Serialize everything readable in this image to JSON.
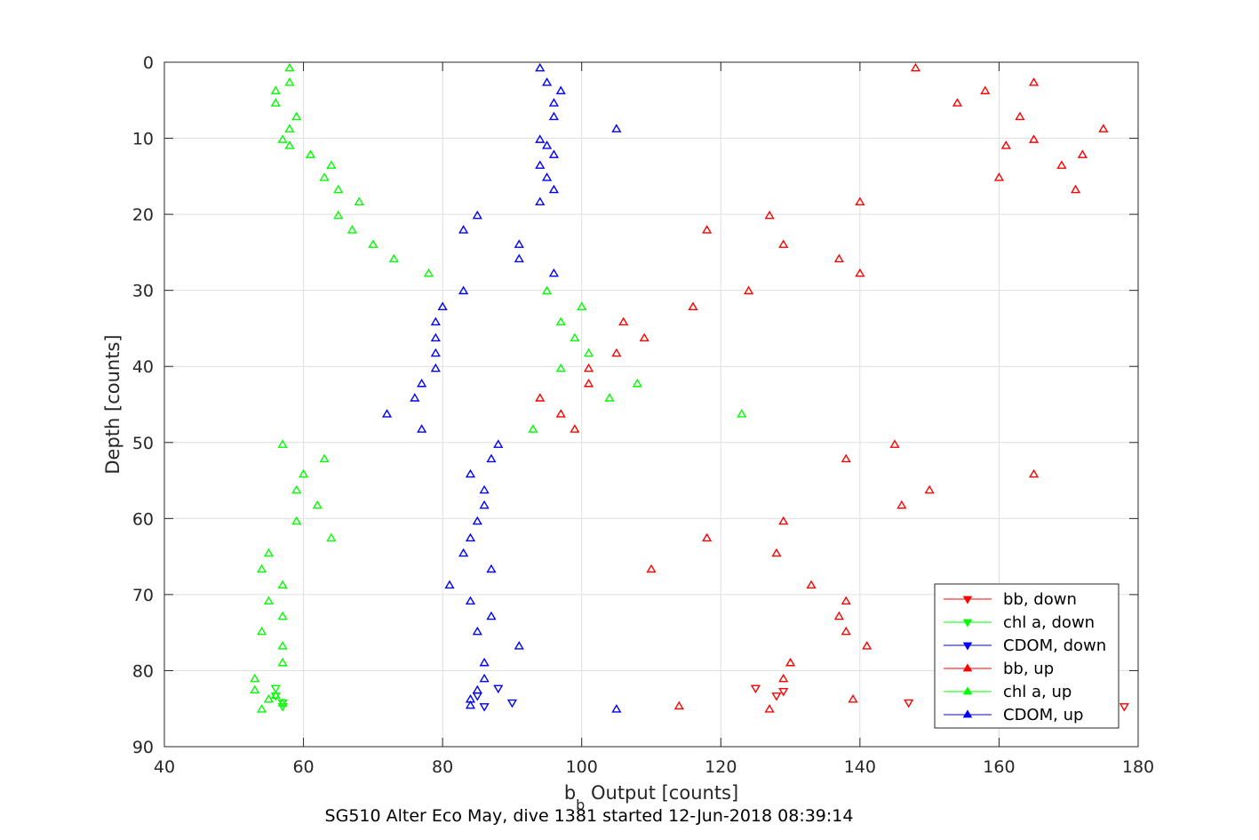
{
  "chart_data": {
    "type": "scatter",
    "caption": "SG510 Alter Eco May, dive 1381 started 12-Jun-2018 08:39:14",
    "xlabel_main": "b",
    "xlabel_sub": "b",
    "xlabel_rest": " Output [counts]",
    "ylabel": "Depth [counts]",
    "xlim": [
      40,
      180
    ],
    "ylim": [
      0,
      90
    ],
    "y_reversed": true,
    "grid": true,
    "legend_position": "bottom-right",
    "xticks": [
      40,
      60,
      80,
      100,
      120,
      140,
      160,
      180
    ],
    "yticks": [
      0,
      10,
      20,
      30,
      40,
      50,
      60,
      70,
      80,
      90
    ],
    "series": [
      {
        "name": "bb, down",
        "color": "#ff0000",
        "marker": "triangle-down",
        "points": [
          [
            125,
            82.3
          ],
          [
            128,
            83.3
          ],
          [
            129,
            82.7
          ],
          [
            147,
            84.2
          ],
          [
            178,
            84.7
          ]
        ]
      },
      {
        "name": "chl a, down",
        "color": "#00ff00",
        "marker": "triangle-down",
        "points": [
          [
            56,
            82.3
          ],
          [
            57,
            84.2
          ],
          [
            56,
            83.3
          ],
          [
            57,
            84.7
          ]
        ]
      },
      {
        "name": "CDOM, down",
        "color": "#0000ff",
        "marker": "triangle-down",
        "points": [
          [
            88,
            82.3
          ],
          [
            85,
            83.3
          ],
          [
            90,
            84.2
          ],
          [
            86,
            84.7
          ]
        ]
      },
      {
        "name": "bb, up",
        "color": "#ff0000",
        "marker": "triangle-up",
        "points": [
          [
            148,
            0.8
          ],
          [
            165,
            2.7
          ],
          [
            158,
            3.8
          ],
          [
            154,
            5.4
          ],
          [
            163,
            7.2
          ],
          [
            175,
            8.8
          ],
          [
            165,
            10.2
          ],
          [
            161,
            11.0
          ],
          [
            172,
            12.2
          ],
          [
            169,
            13.6
          ],
          [
            160,
            15.2
          ],
          [
            171,
            16.8
          ],
          [
            140,
            18.4
          ],
          [
            127,
            20.2
          ],
          [
            118,
            22.1
          ],
          [
            129,
            24.0
          ],
          [
            137,
            25.9
          ],
          [
            140,
            27.8
          ],
          [
            124,
            30.1
          ],
          [
            116,
            32.2
          ],
          [
            106,
            34.2
          ],
          [
            109,
            36.3
          ],
          [
            105,
            38.3
          ],
          [
            101,
            40.3
          ],
          [
            101,
            42.3
          ],
          [
            94,
            44.2
          ],
          [
            97,
            46.3
          ],
          [
            99,
            48.3
          ],
          [
            145,
            50.3
          ],
          [
            138,
            52.2
          ],
          [
            165,
            54.2
          ],
          [
            150,
            56.3
          ],
          [
            146,
            58.3
          ],
          [
            129,
            60.4
          ],
          [
            118,
            62.6
          ],
          [
            128,
            64.6
          ],
          [
            110,
            66.7
          ],
          [
            133,
            68.8
          ],
          [
            138,
            70.9
          ],
          [
            137,
            72.9
          ],
          [
            138,
            74.9
          ],
          [
            141,
            76.8
          ],
          [
            130,
            79.0
          ],
          [
            129,
            81.1
          ],
          [
            139,
            83.8
          ],
          [
            114,
            84.7
          ],
          [
            127,
            85.1
          ]
        ]
      },
      {
        "name": "chl a, up",
        "color": "#00ff00",
        "marker": "triangle-up",
        "points": [
          [
            58,
            0.8
          ],
          [
            58,
            2.7
          ],
          [
            56,
            3.8
          ],
          [
            56,
            5.4
          ],
          [
            59,
            7.2
          ],
          [
            58,
            8.8
          ],
          [
            57,
            10.2
          ],
          [
            58,
            11.0
          ],
          [
            61,
            12.2
          ],
          [
            64,
            13.6
          ],
          [
            63,
            15.2
          ],
          [
            65,
            16.8
          ],
          [
            68,
            18.4
          ],
          [
            65,
            20.2
          ],
          [
            67,
            22.1
          ],
          [
            70,
            24.0
          ],
          [
            73,
            25.9
          ],
          [
            78,
            27.8
          ],
          [
            95,
            30.1
          ],
          [
            100,
            32.2
          ],
          [
            97,
            34.2
          ],
          [
            99,
            36.3
          ],
          [
            101,
            38.3
          ],
          [
            97,
            40.3
          ],
          [
            108,
            42.3
          ],
          [
            104,
            44.2
          ],
          [
            123,
            46.3
          ],
          [
            93,
            48.3
          ],
          [
            57,
            50.3
          ],
          [
            63,
            52.2
          ],
          [
            60,
            54.2
          ],
          [
            59,
            56.3
          ],
          [
            62,
            58.3
          ],
          [
            59,
            60.4
          ],
          [
            64,
            62.6
          ],
          [
            55,
            64.6
          ],
          [
            54,
            66.7
          ],
          [
            57,
            68.8
          ],
          [
            55,
            70.9
          ],
          [
            57,
            72.9
          ],
          [
            54,
            74.9
          ],
          [
            57,
            76.8
          ],
          [
            57,
            79.0
          ],
          [
            53,
            81.1
          ],
          [
            53,
            82.6
          ],
          [
            56,
            83.3
          ],
          [
            55,
            83.8
          ],
          [
            57,
            84.3
          ],
          [
            54,
            85.1
          ]
        ]
      },
      {
        "name": "CDOM, up",
        "color": "#0000ff",
        "marker": "triangle-up",
        "points": [
          [
            94,
            0.8
          ],
          [
            95,
            2.7
          ],
          [
            97,
            3.8
          ],
          [
            96,
            5.4
          ],
          [
            96,
            7.2
          ],
          [
            105,
            8.8
          ],
          [
            94,
            10.2
          ],
          [
            95,
            11.0
          ],
          [
            96,
            12.2
          ],
          [
            94,
            13.6
          ],
          [
            95,
            15.2
          ],
          [
            96,
            16.8
          ],
          [
            94,
            18.4
          ],
          [
            85,
            20.2
          ],
          [
            83,
            22.1
          ],
          [
            91,
            24.0
          ],
          [
            91,
            25.9
          ],
          [
            96,
            27.8
          ],
          [
            83,
            30.1
          ],
          [
            80,
            32.2
          ],
          [
            79,
            34.2
          ],
          [
            79,
            36.3
          ],
          [
            79,
            38.3
          ],
          [
            79,
            40.3
          ],
          [
            77,
            42.3
          ],
          [
            76,
            44.2
          ],
          [
            72,
            46.3
          ],
          [
            77,
            48.3
          ],
          [
            88,
            50.3
          ],
          [
            87,
            52.2
          ],
          [
            84,
            54.2
          ],
          [
            86,
            56.3
          ],
          [
            86,
            58.3
          ],
          [
            85,
            60.4
          ],
          [
            84,
            62.6
          ],
          [
            83,
            64.6
          ],
          [
            87,
            66.7
          ],
          [
            81,
            68.8
          ],
          [
            84,
            70.9
          ],
          [
            87,
            72.9
          ],
          [
            85,
            74.9
          ],
          [
            91,
            76.8
          ],
          [
            86,
            79.0
          ],
          [
            86,
            81.1
          ],
          [
            85,
            82.6
          ],
          [
            84,
            83.8
          ],
          [
            84,
            84.6
          ],
          [
            105,
            85.1
          ]
        ]
      }
    ]
  }
}
